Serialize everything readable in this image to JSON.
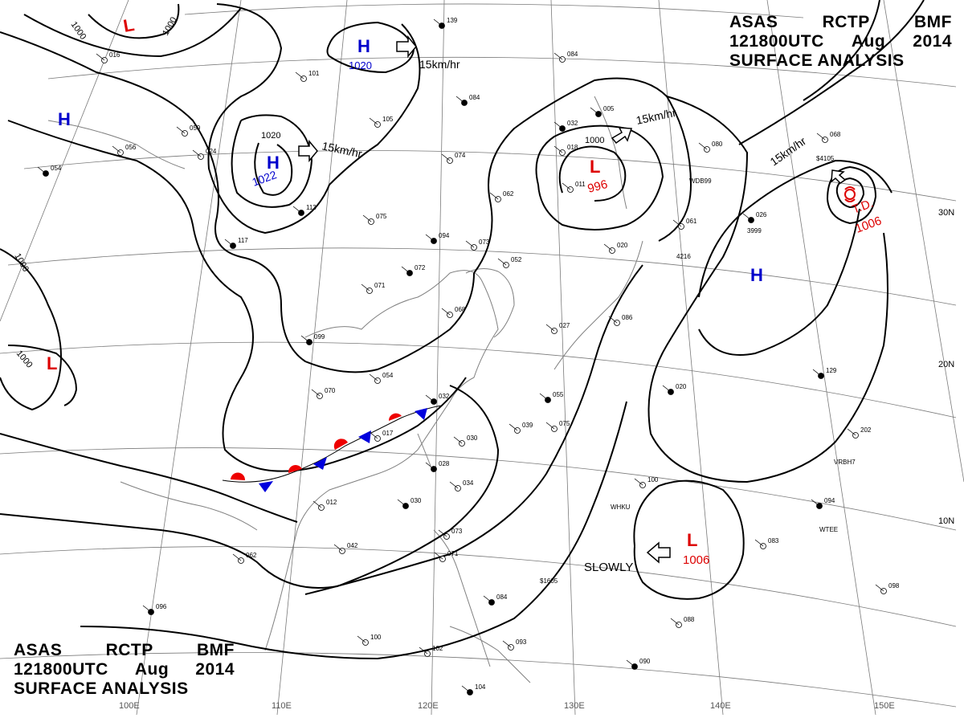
{
  "header": {
    "agency": "ASAS",
    "station": "RCTP",
    "office": "BMF",
    "time": "121800UTC",
    "month": "Aug",
    "year": "2014",
    "title": "SURFACE ANALYSIS"
  },
  "lat_labels": [
    "30N",
    "20N",
    "10N"
  ],
  "lon_labels": [
    "100E",
    "110E",
    "120E",
    "130E",
    "140E",
    "150E"
  ],
  "pressure_centers": [
    {
      "type": "H",
      "value": "1020",
      "color": "#0000cc"
    },
    {
      "type": "H",
      "value": "1022",
      "color": "#0000cc"
    },
    {
      "type": "H",
      "value": "",
      "color": "#0000cc"
    },
    {
      "type": "H",
      "value": "",
      "color": "#0000cc"
    },
    {
      "type": "L",
      "value": "996",
      "color": "#dd0000"
    },
    {
      "type": "L",
      "value": "1006",
      "color": "#dd0000"
    },
    {
      "type": "L",
      "value": "",
      "color": "#dd0000"
    },
    {
      "type": "L",
      "value": "",
      "color": "#dd0000"
    },
    {
      "type": "T.D.",
      "value": "1006",
      "color": "#dd0000"
    }
  ],
  "isobar_labels": [
    "1000",
    "1000",
    "1000",
    "1000",
    "1020",
    "1000"
  ],
  "motion_labels": [
    "15km/hr",
    "15km/hr",
    "15km/hr",
    "15km/hr",
    "SLOWLY"
  ],
  "front": {
    "type": "stationary",
    "warm_color": "#ee0000",
    "cold_color": "#0000dd"
  },
  "station_reports": [
    "139",
    "084",
    "101",
    "084",
    "105",
    "074",
    "113",
    "075",
    "062",
    "094",
    "073",
    "052",
    "072",
    "071",
    "068",
    "099",
    "054",
    "070",
    "032",
    "017",
    "030",
    "028",
    "034",
    "012",
    "030",
    "042",
    "062",
    "096",
    "100",
    "102",
    "104",
    "073",
    "071",
    "084",
    "093",
    "088",
    "090",
    "098",
    "083",
    "094",
    "100",
    "202",
    "129",
    "080",
    "068",
    "055",
    "039",
    "075",
    "032",
    "018",
    "011",
    "005",
    "086",
    "056",
    "054",
    "059",
    "016",
    "117",
    "020",
    "024",
    "026",
    "061",
    "027",
    "020"
  ],
  "ship_ids": [
    "WDB99",
    "WTEE",
    "VRBH7",
    "WHKU",
    "$1605",
    "$4105",
    "3999",
    "4216"
  ]
}
